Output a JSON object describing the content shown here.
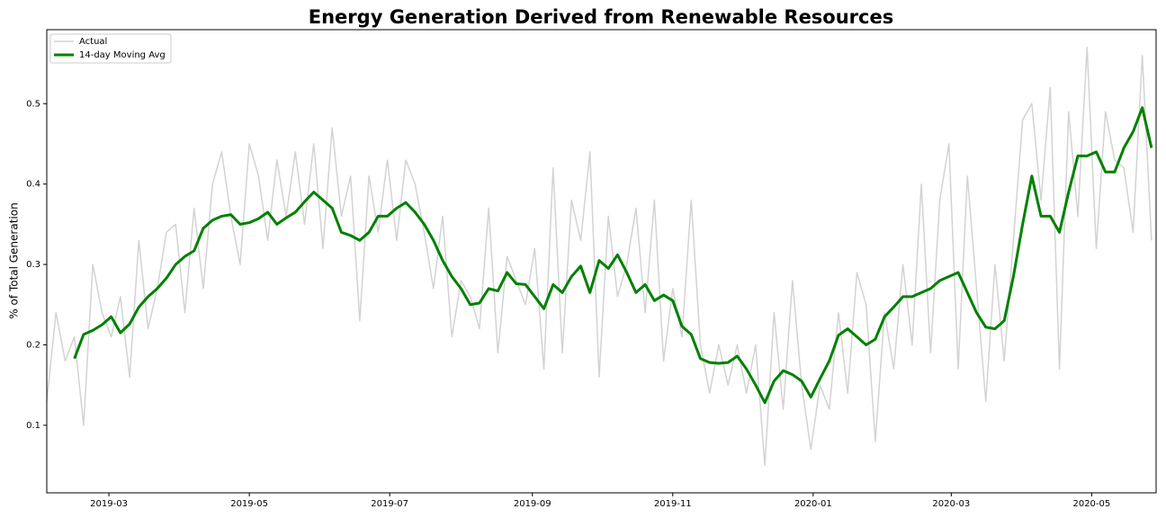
{
  "chart_data": {
    "type": "line",
    "title": "Energy Generation Derived from Renewable Resources",
    "y_label": "% of Total Generation",
    "x": [
      0,
      4,
      8,
      12,
      16,
      20,
      24,
      28,
      32,
      36,
      40,
      44,
      48,
      52,
      56,
      60,
      64,
      68,
      72,
      76,
      80,
      84,
      88,
      92,
      96,
      100,
      104,
      108,
      112,
      116,
      120,
      124,
      128,
      132,
      136,
      140,
      144,
      148,
      152,
      156,
      160,
      164,
      168,
      172,
      176,
      180,
      184,
      188,
      192,
      196,
      200,
      204,
      208,
      212,
      216,
      220,
      224,
      228,
      232,
      236,
      240,
      244,
      248,
      252,
      256,
      260,
      264,
      268,
      272,
      276,
      280,
      284,
      288,
      292,
      296,
      300,
      304,
      308,
      312,
      316,
      320,
      324,
      328,
      332,
      336,
      340,
      344,
      348,
      352,
      356,
      360,
      364,
      368,
      372,
      376,
      380,
      384,
      388,
      392,
      396,
      400,
      404,
      408,
      412,
      416,
      420,
      424,
      428,
      432,
      436,
      440,
      444,
      448,
      452,
      456,
      460,
      464,
      468,
      472,
      476,
      480
    ],
    "xlim": [
      0,
      482
    ],
    "xticks": [
      {
        "value": 27,
        "label": "2019-03"
      },
      {
        "value": 88,
        "label": "2019-05"
      },
      {
        "value": 149,
        "label": "2019-07"
      },
      {
        "value": 211,
        "label": "2019-09"
      },
      {
        "value": 272,
        "label": "2019-11"
      },
      {
        "value": 333,
        "label": "2020-01"
      },
      {
        "value": 393,
        "label": "2020-03"
      },
      {
        "value": 454,
        "label": "2020-05"
      }
    ],
    "ylim": [
      0.016,
      0.592
    ],
    "yticks": [
      0.1,
      0.2,
      0.3,
      0.4,
      0.5
    ],
    "grid": false,
    "legend": "upper-left",
    "series": [
      {
        "name": "Actual",
        "color": "#d3d3d3",
        "width": 1.5,
        "values": [
          0.13,
          0.24,
          0.18,
          0.21,
          0.1,
          0.3,
          0.24,
          0.21,
          0.26,
          0.16,
          0.33,
          0.22,
          0.27,
          0.34,
          0.35,
          0.24,
          0.37,
          0.27,
          0.4,
          0.44,
          0.36,
          0.3,
          0.45,
          0.41,
          0.33,
          0.43,
          0.36,
          0.44,
          0.35,
          0.45,
          0.32,
          0.47,
          0.36,
          0.41,
          0.23,
          0.41,
          0.34,
          0.43,
          0.33,
          0.43,
          0.4,
          0.34,
          0.27,
          0.36,
          0.21,
          0.28,
          0.26,
          0.22,
          0.37,
          0.19,
          0.31,
          0.28,
          0.25,
          0.32,
          0.17,
          0.42,
          0.19,
          0.38,
          0.33,
          0.44,
          0.16,
          0.36,
          0.26,
          0.3,
          0.37,
          0.24,
          0.38,
          0.18,
          0.27,
          0.21,
          0.38,
          0.2,
          0.14,
          0.2,
          0.15,
          0.2,
          0.14,
          0.2,
          0.05,
          0.24,
          0.12,
          0.28,
          0.15,
          0.07,
          0.15,
          0.12,
          0.24,
          0.14,
          0.29,
          0.25,
          0.08,
          0.24,
          0.17,
          0.3,
          0.2,
          0.4,
          0.19,
          0.38,
          0.45,
          0.17,
          0.41,
          0.27,
          0.13,
          0.3,
          0.18,
          0.33,
          0.48,
          0.5,
          0.38,
          0.52,
          0.17,
          0.49,
          0.36,
          0.57,
          0.32,
          0.49,
          0.43,
          0.42,
          0.34,
          0.56,
          0.33
        ]
      },
      {
        "name": "14-day Moving Avg",
        "color": "#008000",
        "width": 3,
        "values": [
          null,
          null,
          null,
          0.183,
          0.213,
          0.218,
          0.225,
          0.235,
          0.215,
          0.226,
          0.247,
          0.26,
          0.27,
          0.283,
          0.3,
          0.31,
          0.317,
          0.345,
          0.355,
          0.36,
          0.362,
          0.35,
          0.352,
          0.357,
          0.365,
          0.35,
          0.358,
          0.365,
          0.378,
          0.39,
          0.38,
          0.37,
          0.34,
          0.336,
          0.33,
          0.34,
          0.36,
          0.36,
          0.37,
          0.377,
          0.365,
          0.35,
          0.33,
          0.305,
          0.285,
          0.27,
          0.25,
          0.252,
          0.27,
          0.267,
          0.29,
          0.276,
          0.275,
          0.26,
          0.245,
          0.275,
          0.265,
          0.285,
          0.298,
          0.265,
          0.305,
          0.295,
          0.312,
          0.29,
          0.265,
          0.275,
          0.255,
          0.262,
          0.255,
          0.223,
          0.213,
          0.183,
          0.178,
          0.177,
          0.178,
          0.186,
          0.17,
          0.15,
          0.128,
          0.155,
          0.168,
          0.163,
          0.155,
          0.135,
          0.158,
          0.18,
          0.212,
          0.22,
          0.21,
          0.2,
          0.207,
          0.235,
          0.247,
          0.26,
          0.26,
          0.265,
          0.27,
          0.28,
          0.285,
          0.29,
          0.265,
          0.24,
          0.222,
          0.22,
          0.23,
          0.285,
          0.35,
          0.41,
          0.36,
          0.36,
          0.34,
          0.39,
          0.435,
          0.435,
          0.44,
          0.415,
          0.415,
          0.445,
          0.465,
          0.495,
          0.445
        ]
      }
    ]
  }
}
